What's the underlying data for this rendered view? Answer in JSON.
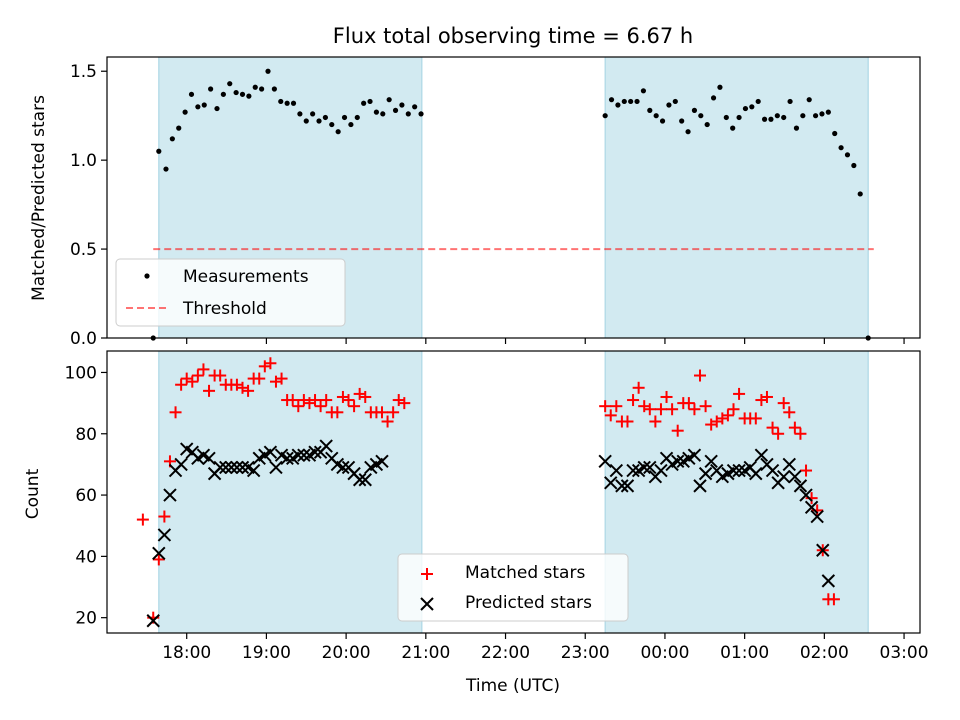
{
  "chart_data": [
    {
      "type": "scatter",
      "title": "Flux total observing time = 6.67 h",
      "ylabel": "Matched/Predicted stars",
      "xlabel": "",
      "x_unit": "hours since 17:00 UTC",
      "ylim": [
        0,
        1.58
      ],
      "yticks": [
        0.0,
        0.5,
        1.0,
        1.5
      ],
      "ytick_labels": [
        "0.0",
        "0.5",
        "1.0",
        "1.5"
      ],
      "shaded_intervals": [
        [
          0.65,
          3.95
        ],
        [
          6.25,
          9.55
        ]
      ],
      "threshold": {
        "name": "Threshold",
        "value": 0.5,
        "x_range": [
          0.58,
          9.62
        ],
        "color": "#ff0000"
      },
      "legend": {
        "placement": "lower-left",
        "entries": [
          "Measurements",
          "Threshold"
        ]
      },
      "series": [
        {
          "name": "Measurements",
          "color": "#000000",
          "marker": "dot",
          "points": [
            [
              0.58,
              0.0
            ],
            [
              0.65,
              1.05
            ],
            [
              0.74,
              0.95
            ],
            [
              0.82,
              1.12
            ],
            [
              0.9,
              1.18
            ],
            [
              0.98,
              1.27
            ],
            [
              1.06,
              1.37
            ],
            [
              1.14,
              1.3
            ],
            [
              1.22,
              1.31
            ],
            [
              1.3,
              1.4
            ],
            [
              1.38,
              1.29
            ],
            [
              1.46,
              1.37
            ],
            [
              1.54,
              1.43
            ],
            [
              1.62,
              1.38
            ],
            [
              1.7,
              1.37
            ],
            [
              1.78,
              1.36
            ],
            [
              1.86,
              1.41
            ],
            [
              1.94,
              1.4
            ],
            [
              2.02,
              1.5
            ],
            [
              2.1,
              1.4
            ],
            [
              2.18,
              1.33
            ],
            [
              2.26,
              1.32
            ],
            [
              2.34,
              1.32
            ],
            [
              2.42,
              1.26
            ],
            [
              2.5,
              1.22
            ],
            [
              2.58,
              1.26
            ],
            [
              2.66,
              1.22
            ],
            [
              2.74,
              1.24
            ],
            [
              2.82,
              1.2
            ],
            [
              2.9,
              1.16
            ],
            [
              2.98,
              1.24
            ],
            [
              3.06,
              1.2
            ],
            [
              3.14,
              1.24
            ],
            [
              3.22,
              1.32
            ],
            [
              3.3,
              1.33
            ],
            [
              3.38,
              1.27
            ],
            [
              3.46,
              1.26
            ],
            [
              3.54,
              1.34
            ],
            [
              3.62,
              1.28
            ],
            [
              3.7,
              1.31
            ],
            [
              3.78,
              1.26
            ],
            [
              3.86,
              1.3
            ],
            [
              3.94,
              1.26
            ],
            [
              6.25,
              1.25
            ],
            [
              6.33,
              1.34
            ],
            [
              6.41,
              1.31
            ],
            [
              6.49,
              1.33
            ],
            [
              6.57,
              1.33
            ],
            [
              6.65,
              1.33
            ],
            [
              6.73,
              1.39
            ],
            [
              6.81,
              1.28
            ],
            [
              6.89,
              1.25
            ],
            [
              6.97,
              1.22
            ],
            [
              7.05,
              1.31
            ],
            [
              7.13,
              1.33
            ],
            [
              7.21,
              1.22
            ],
            [
              7.29,
              1.16
            ],
            [
              7.37,
              1.28
            ],
            [
              7.45,
              1.25
            ],
            [
              7.53,
              1.2
            ],
            [
              7.61,
              1.35
            ],
            [
              7.69,
              1.41
            ],
            [
              7.77,
              1.24
            ],
            [
              7.85,
              1.18
            ],
            [
              7.93,
              1.24
            ],
            [
              8.01,
              1.29
            ],
            [
              8.09,
              1.3
            ],
            [
              8.17,
              1.33
            ],
            [
              8.25,
              1.23
            ],
            [
              8.33,
              1.23
            ],
            [
              8.41,
              1.25
            ],
            [
              8.49,
              1.24
            ],
            [
              8.57,
              1.33
            ],
            [
              8.65,
              1.18
            ],
            [
              8.73,
              1.25
            ],
            [
              8.81,
              1.34
            ],
            [
              8.89,
              1.25
            ],
            [
              8.97,
              1.26
            ],
            [
              9.05,
              1.27
            ],
            [
              9.13,
              1.15
            ],
            [
              9.21,
              1.07
            ],
            [
              9.29,
              1.03
            ],
            [
              9.37,
              0.97
            ],
            [
              9.45,
              0.81
            ],
            [
              9.55,
              0.0
            ]
          ]
        }
      ]
    },
    {
      "type": "scatter",
      "title": "",
      "ylabel": "Count",
      "xlabel": "Time (UTC)",
      "x_unit": "hours since 17:00 UTC",
      "ylim": [
        15,
        107
      ],
      "xlim": [
        0.0,
        10.2
      ],
      "yticks": [
        20,
        40,
        60,
        80,
        100
      ],
      "ytick_labels": [
        "20",
        "40",
        "60",
        "80",
        "100"
      ],
      "xticks": [
        1,
        2,
        3,
        4,
        5,
        6,
        7,
        8,
        9,
        10
      ],
      "xtick_labels": [
        "18:00",
        "19:00",
        "20:00",
        "21:00",
        "22:00",
        "23:00",
        "00:00",
        "01:00",
        "02:00",
        "03:00"
      ],
      "shaded_intervals": [
        [
          0.65,
          3.95
        ],
        [
          6.25,
          9.55
        ]
      ],
      "legend": {
        "placement": "lower-center",
        "entries": [
          "Matched stars",
          "Predicted stars"
        ]
      },
      "series": [
        {
          "name": "Matched stars",
          "color": "#ff0000",
          "marker": "plus",
          "points": [
            [
              0.45,
              52
            ],
            [
              0.58,
              20
            ],
            [
              0.65,
              39
            ],
            [
              0.72,
              53
            ],
            [
              0.79,
              71
            ],
            [
              0.86,
              87
            ],
            [
              0.93,
              96
            ],
            [
              1.0,
              98
            ],
            [
              1.07,
              97
            ],
            [
              1.14,
              99
            ],
            [
              1.21,
              101
            ],
            [
              1.28,
              94
            ],
            [
              1.35,
              99
            ],
            [
              1.42,
              99
            ],
            [
              1.49,
              96
            ],
            [
              1.56,
              96
            ],
            [
              1.63,
              96
            ],
            [
              1.7,
              95
            ],
            [
              1.77,
              94
            ],
            [
              1.84,
              98
            ],
            [
              1.91,
              98
            ],
            [
              1.98,
              102
            ],
            [
              2.05,
              103
            ],
            [
              2.12,
              97
            ],
            [
              2.19,
              98
            ],
            [
              2.26,
              91
            ],
            [
              2.33,
              91
            ],
            [
              2.4,
              89
            ],
            [
              2.47,
              91
            ],
            [
              2.54,
              90
            ],
            [
              2.61,
              91
            ],
            [
              2.68,
              89
            ],
            [
              2.75,
              91
            ],
            [
              2.82,
              87
            ],
            [
              2.89,
              87
            ],
            [
              2.96,
              92
            ],
            [
              3.03,
              91
            ],
            [
              3.1,
              89
            ],
            [
              3.17,
              93
            ],
            [
              3.24,
              92
            ],
            [
              3.31,
              87
            ],
            [
              3.38,
              87
            ],
            [
              3.45,
              87
            ],
            [
              3.52,
              84
            ],
            [
              3.59,
              87
            ],
            [
              3.66,
              91
            ],
            [
              3.73,
              90
            ],
            [
              6.25,
              89
            ],
            [
              6.32,
              86
            ],
            [
              6.39,
              89
            ],
            [
              6.46,
              84
            ],
            [
              6.53,
              84
            ],
            [
              6.6,
              91
            ],
            [
              6.67,
              95
            ],
            [
              6.74,
              89
            ],
            [
              6.81,
              88
            ],
            [
              6.88,
              84
            ],
            [
              6.95,
              88
            ],
            [
              7.02,
              92
            ],
            [
              7.09,
              88
            ],
            [
              7.16,
              81
            ],
            [
              7.23,
              90
            ],
            [
              7.3,
              90
            ],
            [
              7.37,
              88
            ],
            [
              7.44,
              99
            ],
            [
              7.51,
              89
            ],
            [
              7.58,
              83
            ],
            [
              7.65,
              84
            ],
            [
              7.72,
              85
            ],
            [
              7.79,
              86
            ],
            [
              7.86,
              88
            ],
            [
              7.93,
              93
            ],
            [
              8.0,
              85
            ],
            [
              8.07,
              85
            ],
            [
              8.14,
              85
            ],
            [
              8.21,
              91
            ],
            [
              8.28,
              92
            ],
            [
              8.35,
              82
            ],
            [
              8.42,
              80
            ],
            [
              8.49,
              90
            ],
            [
              8.56,
              87
            ],
            [
              8.63,
              82
            ],
            [
              8.7,
              80
            ],
            [
              8.77,
              68
            ],
            [
              8.84,
              59
            ],
            [
              8.91,
              55
            ],
            [
              8.98,
              42
            ],
            [
              9.05,
              26
            ],
            [
              9.12,
              26
            ]
          ]
        },
        {
          "name": "Predicted stars",
          "color": "#000000",
          "marker": "x",
          "points": [
            [
              0.58,
              19
            ],
            [
              0.65,
              41
            ],
            [
              0.72,
              47
            ],
            [
              0.79,
              60
            ],
            [
              0.86,
              68
            ],
            [
              0.93,
              70
            ],
            [
              1.0,
              75
            ],
            [
              1.07,
              74
            ],
            [
              1.14,
              72
            ],
            [
              1.21,
              73
            ],
            [
              1.28,
              72
            ],
            [
              1.35,
              67
            ],
            [
              1.42,
              69
            ],
            [
              1.49,
              69
            ],
            [
              1.56,
              69
            ],
            [
              1.63,
              69
            ],
            [
              1.7,
              69
            ],
            [
              1.77,
              69
            ],
            [
              1.84,
              68
            ],
            [
              1.91,
              72
            ],
            [
              1.98,
              73
            ],
            [
              2.05,
              74
            ],
            [
              2.12,
              69
            ],
            [
              2.19,
              73
            ],
            [
              2.26,
              72
            ],
            [
              2.33,
              72
            ],
            [
              2.4,
              73
            ],
            [
              2.47,
              73
            ],
            [
              2.54,
              73
            ],
            [
              2.61,
              74
            ],
            [
              2.68,
              74
            ],
            [
              2.75,
              76
            ],
            [
              2.82,
              72
            ],
            [
              2.89,
              70
            ],
            [
              2.96,
              69
            ],
            [
              3.03,
              69
            ],
            [
              3.1,
              67
            ],
            [
              3.17,
              65
            ],
            [
              3.24,
              65
            ],
            [
              3.31,
              69
            ],
            [
              3.38,
              70
            ],
            [
              3.45,
              71
            ],
            [
              6.25,
              71
            ],
            [
              6.32,
              64
            ],
            [
              6.39,
              68
            ],
            [
              6.46,
              63
            ],
            [
              6.53,
              63
            ],
            [
              6.6,
              68
            ],
            [
              6.67,
              68
            ],
            [
              6.74,
              69
            ],
            [
              6.81,
              69
            ],
            [
              6.88,
              66
            ],
            [
              6.95,
              68
            ],
            [
              7.02,
              72
            ],
            [
              7.09,
              70
            ],
            [
              7.16,
              71
            ],
            [
              7.23,
              71
            ],
            [
              7.3,
              72
            ],
            [
              7.37,
              73
            ],
            [
              7.44,
              63
            ],
            [
              7.51,
              67
            ],
            [
              7.58,
              71
            ],
            [
              7.65,
              68
            ],
            [
              7.72,
              66
            ],
            [
              7.79,
              67
            ],
            [
              7.86,
              68
            ],
            [
              7.93,
              68
            ],
            [
              8.0,
              68
            ],
            [
              8.07,
              69
            ],
            [
              8.14,
              67
            ],
            [
              8.21,
              73
            ],
            [
              8.28,
              70
            ],
            [
              8.35,
              68
            ],
            [
              8.42,
              64
            ],
            [
              8.49,
              66
            ],
            [
              8.56,
              70
            ],
            [
              8.63,
              66
            ],
            [
              8.7,
              63
            ],
            [
              8.77,
              60
            ],
            [
              8.84,
              56
            ],
            [
              8.91,
              53
            ],
            [
              8.98,
              42
            ],
            [
              9.05,
              32
            ]
          ]
        }
      ]
    }
  ]
}
